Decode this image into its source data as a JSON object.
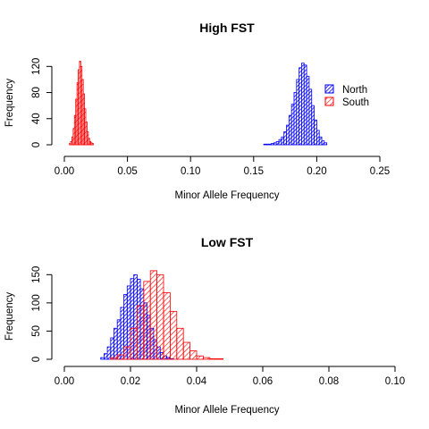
{
  "chart_data": [
    {
      "type": "histogram",
      "title": "High FST",
      "xlabel": "Minor Allele Frequency",
      "ylabel": "Frequency",
      "xlim": [
        0,
        0.25
      ],
      "ylim": [
        0,
        130
      ],
      "x_ticks": [
        "0.00",
        "0.05",
        "0.10",
        "0.15",
        "0.20",
        "0.25"
      ],
      "y_ticks": [
        "0",
        "40",
        "80",
        "120"
      ],
      "legend": {
        "position": "right",
        "entries": [
          "North",
          "South"
        ]
      },
      "series": [
        {
          "name": "North",
          "color": "#0000ff",
          "bin_width": 0.002,
          "bin_start": 0.158,
          "counts": [
            1,
            1,
            1,
            2,
            3,
            5,
            8,
            12,
            20,
            30,
            45,
            62,
            80,
            100,
            118,
            125,
            122,
            105,
            85,
            60,
            38,
            22,
            12,
            6,
            3
          ]
        },
        {
          "name": "South",
          "color": "#ff0000",
          "bin_width": 0.001,
          "bin_start": 0.004,
          "counts": [
            2,
            5,
            12,
            25,
            45,
            70,
            95,
            115,
            128,
            120,
            100,
            78,
            55,
            35,
            20,
            10,
            5,
            3,
            2
          ]
        }
      ]
    },
    {
      "type": "histogram",
      "title": "Low FST",
      "xlabel": "Minor Allele Frequency",
      "ylabel": "Frequency",
      "xlim": [
        0,
        0.1
      ],
      "ylim": [
        0,
        160
      ],
      "x_ticks": [
        "0.00",
        "0.02",
        "0.04",
        "0.06",
        "0.08",
        "0.10"
      ],
      "y_ticks": [
        "0",
        "50",
        "100",
        "150"
      ],
      "series": [
        {
          "name": "North",
          "color": "#0000ff",
          "bin_width": 0.001,
          "bin_start": 0.011,
          "counts": [
            3,
            10,
            22,
            38,
            55,
            70,
            92,
            115,
            130,
            143,
            150,
            142,
            125,
            100,
            78,
            55,
            35,
            22,
            12,
            6,
            3,
            1
          ]
        },
        {
          "name": "South",
          "color": "#ff0000",
          "bin_width": 0.002,
          "bin_start": 0.014,
          "counts": [
            3,
            8,
            22,
            55,
            95,
            138,
            157,
            150,
            118,
            85,
            55,
            30,
            15,
            6,
            3,
            1,
            1
          ]
        }
      ]
    }
  ]
}
